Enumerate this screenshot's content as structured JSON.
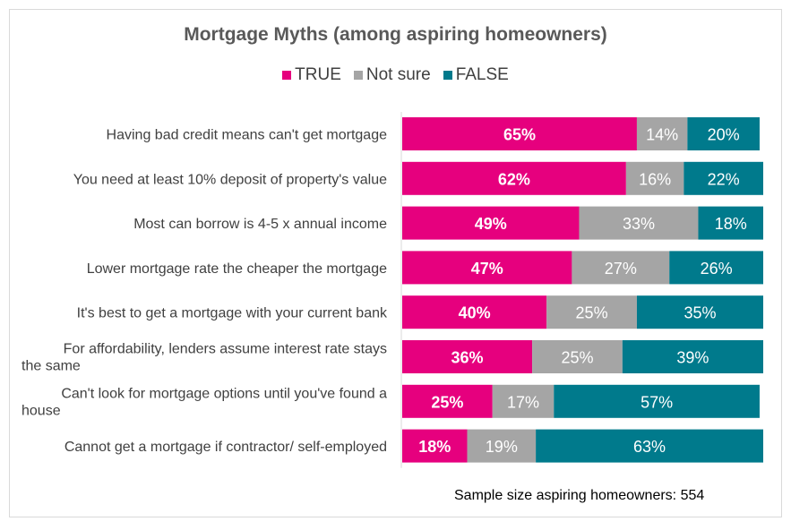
{
  "chart_data": {
    "type": "bar",
    "orientation": "horizontal",
    "stacked": true,
    "percent_stacked": true,
    "title": "Mortgage Myths (among aspiring homeowners)",
    "legend_position": "top",
    "categories": [
      [
        "Having bad credit means can't get mortgage"
      ],
      [
        "You need at least 10% deposit of property's value"
      ],
      [
        "Most can borrow is 4-5 x annual income"
      ],
      [
        "Lower mortgage rate the cheaper the mortgage"
      ],
      [
        "It's best to get a mortgage with your current bank"
      ],
      [
        "For affordability, lenders assume interest rate stays",
        "the same"
      ],
      [
        "Can't look for mortgage options until you've found a",
        "house"
      ],
      [
        "Cannot get a mortgage if contractor/ self-employed"
      ]
    ],
    "series": [
      {
        "name": "TRUE",
        "color": "#e6007e",
        "label_color": "#ffffff",
        "bold": true,
        "values": [
          65,
          62,
          49,
          47,
          40,
          36,
          25,
          18
        ],
        "labels": [
          "65%",
          "62%",
          "49%",
          "47%",
          "40%",
          "36%",
          "25%",
          "18%"
        ]
      },
      {
        "name": "Not sure",
        "color": "#a5a5a5",
        "label_color": "#ffffff",
        "bold": false,
        "values": [
          14,
          16,
          33,
          27,
          25,
          25,
          17,
          19
        ],
        "labels": [
          "14%",
          "16%",
          "33%",
          "27%",
          "25%",
          "25%",
          "17%",
          "19%"
        ]
      },
      {
        "name": "FALSE",
        "color": "#007a8c",
        "label_color": "#ffffff",
        "bold": false,
        "values": [
          20,
          22,
          18,
          26,
          35,
          39,
          57,
          63
        ],
        "labels": [
          "20%",
          "22%",
          "18%",
          "26%",
          "35%",
          "39%",
          "57%",
          "63%"
        ]
      }
    ]
  },
  "footnote": "Sample size aspiring homeowners: 554"
}
